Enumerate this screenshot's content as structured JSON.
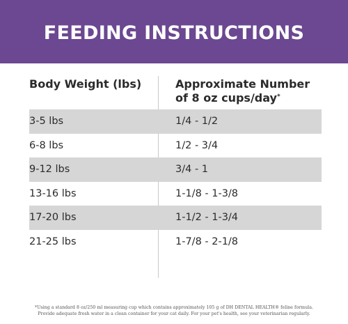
{
  "banner": {
    "title": "FEEDING INSTRUCTIONS",
    "background_color": "#6b4891"
  },
  "table": {
    "header_left": "Body Weight (lbs)",
    "header_right_line1": "Approximate Number",
    "header_right_line2": "of 8 oz cups/day",
    "header_right_marker": "*",
    "shade_color": "#d6d6d6",
    "rows": [
      {
        "weight": "3-5 lbs",
        "cups": "1/4 - 1/2",
        "shaded": true
      },
      {
        "weight": "6-8 lbs",
        "cups": "1/2 - 3/4",
        "shaded": false
      },
      {
        "weight": "9-12 lbs",
        "cups": "3/4 - 1",
        "shaded": true
      },
      {
        "weight": "13-16 lbs",
        "cups": "1-1/8 - 1-3/8",
        "shaded": false
      },
      {
        "weight": "17-20 lbs",
        "cups": "1-1/2 - 1-3/4",
        "shaded": true
      },
      {
        "weight": "21-25 lbs",
        "cups": "1-7/8 - 2-1/8",
        "shaded": false
      }
    ]
  },
  "footnote": {
    "line1": "*Using a standard 8 oz/250 ml measuring cup which contains approximately 105 g of DH DENTAL HEALTH® feline formula.",
    "line2": "Provide adequate fresh water in a clean container for your cat daily. For your pet's health, see your veterinarian regularly."
  }
}
